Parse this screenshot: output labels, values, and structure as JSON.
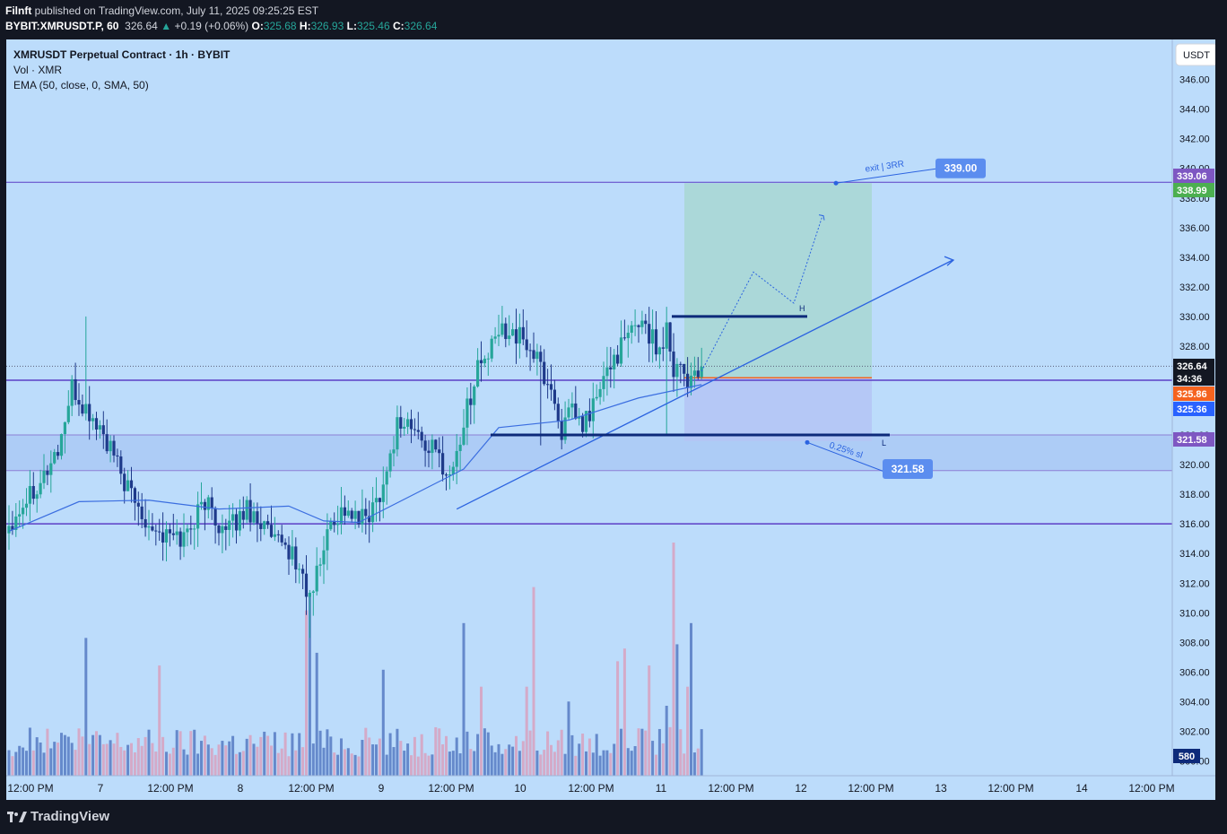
{
  "header": {
    "publisher": "Filnft",
    "published_text": "published on TradingView.com, July 11, 2025 09:25:25 EST",
    "symbol": "BYBIT:XMRUSDT.P, 60",
    "last": "326.64",
    "change": "+0.19 (+0.06%)",
    "o_label": "O:",
    "o": "325.68",
    "h_label": "H:",
    "h": "326.93",
    "l_label": "L:",
    "l": "325.46",
    "c_label": "C:",
    "c": "326.64"
  },
  "legend": {
    "title": "XMRUSDT Perpetual Contract · 1h · BYBIT",
    "vol": "Vol · XMR",
    "ema": "EMA (50, close, 0, SMA, 50)"
  },
  "currency_button": "USDT",
  "brand": "TradingView",
  "colors": {
    "background": "#bcdcfb",
    "bull": "#26a69a",
    "bear": "#1e3a8a",
    "vol_up": "#5b80c5",
    "vol_down": "#d6a4c2",
    "ema": "#3b6ee0",
    "hline": "#5b3ec6",
    "target_box": "#a8d7d2",
    "stop_box": "#b4c4f4",
    "price_last": "#131722",
    "price_orange": "#f5631f",
    "price_blue": "#2962ff",
    "price_purple": "#7e57c2",
    "price_green": "#4caf50"
  },
  "chart_data": {
    "type": "candlestick",
    "y_axis": {
      "range": [
        299,
        348.7
      ],
      "ticks": [
        "346.00",
        "344.00",
        "342.00",
        "340.00",
        "338.00",
        "336.00",
        "334.00",
        "332.00",
        "330.00",
        "328.00",
        "326.00",
        "324.00",
        "322.00",
        "320.00",
        "318.00",
        "316.00",
        "314.00",
        "312.00",
        "310.00",
        "308.00",
        "306.00",
        "304.00",
        "302.00",
        "300.00"
      ]
    },
    "x_axis": {
      "labels": [
        "12:00 PM",
        "7",
        "12:00 PM",
        "8",
        "12:00 PM",
        "9",
        "12:00 PM",
        "10",
        "12:00 PM",
        "11",
        "12:00 PM",
        "12",
        "12:00 PM",
        "13",
        "12:00 PM",
        "14",
        "12:00 PM"
      ]
    },
    "anchor_closes": [
      [
        0,
        316.0
      ],
      [
        6,
        318.2
      ],
      [
        10,
        319.3
      ],
      [
        14,
        321.0
      ],
      [
        18,
        325.0
      ],
      [
        22,
        323.6
      ],
      [
        26,
        322.4
      ],
      [
        30,
        320.4
      ],
      [
        34,
        318.3
      ],
      [
        38,
        316.7
      ],
      [
        44,
        315.2
      ],
      [
        50,
        315.1
      ],
      [
        56,
        317.6
      ],
      [
        62,
        315.3
      ],
      [
        68,
        317.1
      ],
      [
        72,
        316.2
      ],
      [
        76,
        314.6
      ],
      [
        80,
        314.3
      ],
      [
        84,
        312.4
      ],
      [
        86,
        310.8
      ],
      [
        88,
        312.6
      ],
      [
        92,
        316.2
      ],
      [
        96,
        317.0
      ],
      [
        100,
        316.1
      ],
      [
        104,
        317.0
      ],
      [
        108,
        319.5
      ],
      [
        111,
        322.8
      ],
      [
        114,
        322.8
      ],
      [
        118,
        321.6
      ],
      [
        122,
        320.8
      ],
      [
        126,
        319.2
      ],
      [
        128,
        320.8
      ],
      [
        131,
        323.8
      ],
      [
        134,
        326.7
      ],
      [
        137,
        327.3
      ],
      [
        140,
        328.9
      ],
      [
        143,
        329.3
      ],
      [
        146,
        328.5
      ],
      [
        149,
        327.9
      ],
      [
        152,
        326.5
      ],
      [
        155,
        325.0
      ],
      [
        158,
        322.3
      ],
      [
        161,
        323.5
      ],
      [
        164,
        322.5
      ],
      [
        167,
        324.0
      ],
      [
        170,
        325.6
      ],
      [
        173,
        327.3
      ],
      [
        176,
        328.2
      ],
      [
        179,
        329.3
      ],
      [
        181,
        330.0
      ],
      [
        183,
        328.8
      ],
      [
        186,
        327.7
      ],
      [
        188,
        329.4
      ],
      [
        190,
        326.6
      ],
      [
        192,
        326.9
      ],
      [
        194,
        325.6
      ],
      [
        196,
        326.3
      ],
      [
        198,
        326.6
      ]
    ],
    "volume_scale_max": 1100,
    "volume_label": "580",
    "ema_points": [
      [
        0,
        315.5
      ],
      [
        20,
        317.5
      ],
      [
        40,
        317.6
      ],
      [
        60,
        317.0
      ],
      [
        80,
        317.2
      ],
      [
        90,
        316.2
      ],
      [
        100,
        316.1
      ],
      [
        120,
        318.5
      ],
      [
        130,
        319.7
      ],
      [
        140,
        322.5
      ],
      [
        160,
        323.0
      ],
      [
        180,
        324.5
      ],
      [
        198,
        325.4
      ]
    ],
    "horizontal_lines": [
      339.06,
      326.64,
      316.0,
      322.0,
      319.6
    ],
    "position": {
      "entry": 325.86,
      "target": 339.0,
      "stop": 321.58,
      "target_label": "339.00",
      "stop_label": "321.58",
      "target_text": "exit | 3RR",
      "stop_text": "0.25% sl"
    },
    "level_markers": {
      "high": "H",
      "low": "L",
      "high_level": 330.0,
      "low_level": 322.0
    },
    "price_labels": [
      {
        "value": "339.06",
        "color": "#7e57c2"
      },
      {
        "value": "338.99",
        "color": "#4caf50"
      },
      {
        "value": "326.64",
        "color": "#131722"
      },
      {
        "value": "34:36",
        "color": "#131722"
      },
      {
        "value": "325.86",
        "color": "#f5631f"
      },
      {
        "value": "325.36",
        "color": "#2962ff"
      },
      {
        "value": "321.58",
        "color": "#7e57c2"
      }
    ],
    "countdown": "34:36"
  }
}
